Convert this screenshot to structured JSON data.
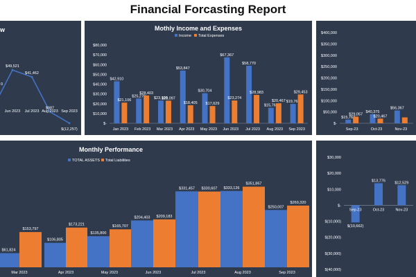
{
  "report_title": "Financial Forcasting Report",
  "colors": {
    "panel_bg": "#2f3a4d",
    "blue": "#4472c4",
    "orange": "#ed7d31",
    "text": "#ffffff"
  },
  "panels": {
    "top_left_title_fragment": "w",
    "top_mid_title": "Mothly Income and Expenses",
    "bottom_left_title": "Monthly Performance"
  },
  "chart_data": [
    {
      "id": "cashflow-trend",
      "type": "line",
      "x_labels": [
        "",
        "Jun 2023",
        "Jul 2023",
        "Aug 2023",
        "Sep 2023"
      ],
      "series": [
        {
          "values": [
            null,
            49521,
            41462,
            987,
            -12257
          ],
          "labels": [
            "",
            "$49,521",
            "$41,462",
            "$987",
            "$(12,257)"
          ]
        }
      ],
      "partial_label": "0"
    },
    {
      "id": "income-expenses",
      "type": "bar",
      "title": "Mothly Income and Expenses",
      "categories": [
        "Jan 2023",
        "Feb 2023",
        "Mar 2023",
        "Apr 2023",
        "May 2023",
        "Jun 2023",
        "Jul 2023",
        "Aug 2023",
        "Sep 2023"
      ],
      "series": [
        {
          "name": "Income",
          "values": [
            42910,
            25270,
            23198,
            53847,
            30704,
            67367,
            58770,
            15767,
            19767
          ],
          "labels": [
            "$42,910",
            "$25,270",
            "$23,198",
            "$53,847",
            "$30,704",
            "$67,367",
            "$58,770",
            "$15,767",
            "$19,767"
          ]
        },
        {
          "name": "Total Expenses",
          "values": [
            21106,
            28403,
            23097,
            18405,
            17629,
            23274,
            28983,
            20467,
            29453
          ],
          "labels": [
            "$21,106",
            "$28,403",
            "$23,097",
            "$18,405",
            "$17,629",
            "$23,274",
            "$28,983",
            "$20,467",
            "$29,453"
          ]
        }
      ],
      "ylim": [
        0,
        80000
      ],
      "yticks": [
        "$-",
        "$10,000",
        "$20,000",
        "$30,000",
        "$40,000",
        "$50,000",
        "$60,000",
        "$70,000",
        "$80,000"
      ]
    },
    {
      "id": "quarterly-bars",
      "type": "bar",
      "categories": [
        "Sep-23",
        "Oct-23",
        "Nov-23"
      ],
      "series": [
        {
          "values": [
            15767,
            40375,
            56367
          ],
          "labels": [
            "$15,767",
            "$40,375",
            "$56,367"
          ]
        },
        {
          "values": [
            29057,
            20467,
            26000
          ],
          "labels": [
            "$29,057",
            "$20,467",
            ""
          ]
        }
      ],
      "ylim": [
        0,
        400000
      ],
      "yticks": [
        "$-",
        "$50,000",
        "$100,000",
        "$150,000",
        "$200,000",
        "$250,000",
        "$300,000",
        "$350,000",
        "$400,000"
      ]
    },
    {
      "id": "monthly-performance",
      "type": "bar",
      "title": "Monthly Performance",
      "categories": [
        "",
        "Mar 2023",
        "Apr 2023",
        "May 2023",
        "Jun 2023",
        "Jul 2023",
        "Aug 2023",
        "Sep 2023"
      ],
      "series": [
        {
          "name": "TOTAL ASSETS",
          "values": [
            61824,
            null,
            106805,
            135800,
            204403,
            331457,
            333126,
            250007
          ],
          "labels": [
            "$61,824",
            "",
            "$106,805",
            "$135,800",
            "$204,403",
            "$331,457",
            "$333,126",
            "$250,007"
          ]
        },
        {
          "name": "Total Liabilities",
          "values": [
            153797,
            173221,
            null,
            165707,
            209183,
            330607,
            351867,
            269320
          ],
          "labels": [
            "$153,797",
            "$173,221",
            "",
            "$165,707",
            "$209,183",
            "$330,607",
            "$351,867",
            "$269,320"
          ]
        }
      ],
      "ylim": [
        0,
        420000
      ]
    },
    {
      "id": "net-bars",
      "type": "bar",
      "categories": [
        "Sep-23",
        "Oct-23",
        "Nov-23"
      ],
      "series": [
        {
          "values": [
            -10662,
            13776,
            12529
          ],
          "labels": [
            "$(10,662)",
            "$13,776",
            "$12,529"
          ]
        }
      ],
      "ylim": [
        -40000,
        30000
      ],
      "yticks": [
        "$(40,000)",
        "$(30,000)",
        "$(20,000)",
        "$(10,000)",
        "$-",
        "$10,000",
        "$20,000",
        "$30,000"
      ]
    }
  ]
}
